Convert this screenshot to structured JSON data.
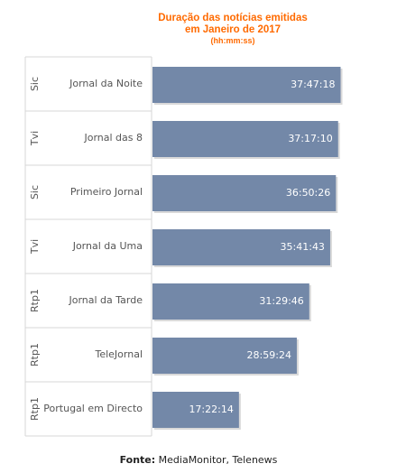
{
  "chart_data": {
    "type": "bar",
    "orientation": "horizontal",
    "title_lines": [
      "Duração das notícias emitidas",
      "em Janeiro de 2017"
    ],
    "subtitle": "(hh:mm:ss)",
    "groups": [
      "Sic",
      "Tvi",
      "Sic",
      "Tvi",
      "Rtp1",
      "Rtp1",
      "Rtp1"
    ],
    "categories": [
      "Jornal da Noite",
      "Jornal das 8",
      "Primeiro Jornal",
      "Jornal da Uma",
      "Jornal da Tarde",
      "TeleJornal",
      "Portugal em Directo"
    ],
    "value_labels": [
      "37:47:18",
      "37:17:10",
      "36:50:26",
      "35:41:43",
      "31:29:46",
      "28:59:24",
      "17:22:14"
    ],
    "values_hours": [
      37.788,
      37.286,
      36.841,
      35.695,
      31.496,
      28.99,
      17.371
    ],
    "xlim": [
      0,
      40
    ],
    "bar_color": "#7388a8",
    "value_label_color": "#ffffff",
    "title_color": "#ff6a00"
  },
  "source": {
    "label": "Fonte:",
    "text": " MediaMonitor, Telenews"
  }
}
